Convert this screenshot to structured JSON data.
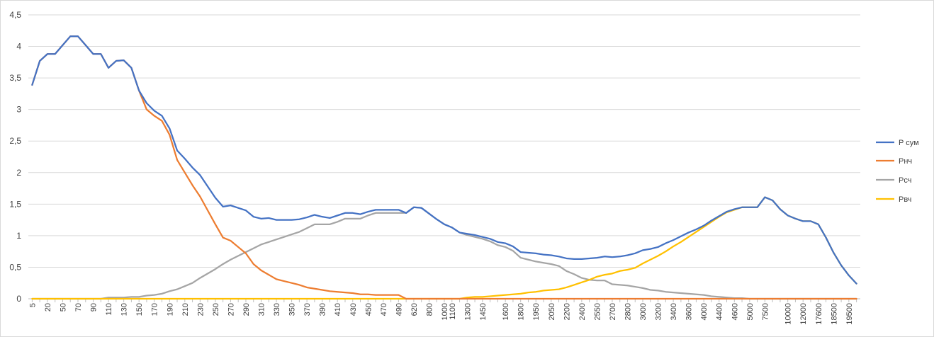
{
  "chart_data": {
    "type": "line",
    "title": "",
    "xlabel": "",
    "ylabel": "",
    "ylim": [
      0,
      4.5
    ],
    "yticks": [
      "0",
      "0,5",
      "1",
      "1,5",
      "2",
      "2,5",
      "3",
      "3,5",
      "4",
      "4,5"
    ],
    "grid": "horizontal",
    "legend_position": "right",
    "categories": [
      "5",
      "10",
      "20",
      "30",
      "50",
      "60",
      "70",
      "80",
      "90",
      "100",
      "110",
      "120",
      "130",
      "140",
      "150",
      "160",
      "170",
      "180",
      "190",
      "200",
      "210",
      "220",
      "230",
      "240",
      "250",
      "260",
      "270",
      "280",
      "290",
      "300",
      "310",
      "320",
      "330",
      "340",
      "350",
      "360",
      "370",
      "380",
      "390",
      "400",
      "410",
      "420",
      "430",
      "440",
      "450",
      "460",
      "470",
      "480",
      "490",
      "500",
      "620",
      "700",
      "800",
      "900",
      "1000",
      "1100",
      "1200",
      "1300",
      "1400",
      "1450",
      "1500",
      "1550",
      "1600",
      "1700",
      "1800",
      "1900",
      "1950",
      "2000",
      "2050",
      "2100",
      "2200",
      "2300",
      "2400",
      "2500",
      "2550",
      "2600",
      "2700",
      "2750",
      "2800",
      "2900",
      "3000",
      "3100",
      "3200",
      "3300",
      "3400",
      "3500",
      "3600",
      "3800",
      "4000",
      "4200",
      "4400",
      "4500",
      "4600",
      "4700",
      "5000",
      "6000",
      "7500",
      "8000",
      "9000",
      "10000",
      "11000",
      "12000",
      "15000",
      "17600",
      "18000",
      "18500",
      "19000",
      "19500",
      "20000"
    ],
    "tick_labels": [
      "5",
      "20",
      "50",
      "70",
      "90",
      "110",
      "130",
      "150",
      "170",
      "190",
      "210",
      "230",
      "250",
      "270",
      "290",
      "310",
      "330",
      "350",
      "370",
      "390",
      "410",
      "430",
      "450",
      "470",
      "490",
      "620",
      "800",
      "1000",
      "1100",
      "1300",
      "1450",
      "1600",
      "1800",
      "1950",
      "2050",
      "2200",
      "2400",
      "2550",
      "2700",
      "2800",
      "3000",
      "3200",
      "3400",
      "3600",
      "4000",
      "4400",
      "4600",
      "5000",
      "7500",
      "10000",
      "12000",
      "17600",
      "18500",
      "19500"
    ],
    "series": [
      {
        "name": "P сум",
        "color": "#4472C4",
        "values": [
          3.39,
          3.77,
          3.88,
          3.88,
          4.02,
          4.16,
          4.16,
          4.02,
          3.88,
          3.88,
          3.66,
          3.77,
          3.78,
          3.66,
          3.3,
          3.1,
          2.98,
          2.9,
          2.7,
          2.35,
          2.22,
          2.08,
          1.96,
          1.78,
          1.6,
          1.46,
          1.48,
          1.44,
          1.4,
          1.3,
          1.27,
          1.28,
          1.25,
          1.25,
          1.25,
          1.26,
          1.29,
          1.33,
          1.3,
          1.28,
          1.32,
          1.36,
          1.36,
          1.34,
          1.38,
          1.41,
          1.41,
          1.41,
          1.41,
          1.36,
          1.45,
          1.44,
          1.35,
          1.26,
          1.18,
          1.13,
          1.05,
          1.03,
          1.01,
          0.98,
          0.95,
          0.9,
          0.88,
          0.83,
          0.74,
          0.73,
          0.72,
          0.7,
          0.69,
          0.67,
          0.64,
          0.63,
          0.63,
          0.64,
          0.65,
          0.67,
          0.66,
          0.67,
          0.69,
          0.72,
          0.77,
          0.79,
          0.82,
          0.88,
          0.93,
          0.99,
          1.05,
          1.1,
          1.16,
          1.24,
          1.31,
          1.38,
          1.42,
          1.45,
          1.45,
          1.45,
          1.61,
          1.56,
          1.42,
          1.32,
          1.27,
          1.23,
          1.23,
          1.18,
          0.97,
          0.73,
          0.53,
          0.37,
          0.24
        ]
      },
      {
        "name": "Рнч",
        "color": "#ED7D31",
        "values": [
          3.39,
          3.77,
          3.88,
          3.88,
          4.02,
          4.16,
          4.16,
          4.02,
          3.88,
          3.88,
          3.66,
          3.77,
          3.78,
          3.66,
          3.3,
          3.0,
          2.9,
          2.82,
          2.6,
          2.2,
          2.0,
          1.8,
          1.62,
          1.4,
          1.18,
          0.97,
          0.92,
          0.82,
          0.72,
          0.55,
          0.45,
          0.38,
          0.31,
          0.28,
          0.25,
          0.22,
          0.18,
          0.16,
          0.14,
          0.12,
          0.11,
          0.1,
          0.09,
          0.07,
          0.07,
          0.06,
          0.06,
          0.06,
          0.06,
          0.0,
          0,
          0,
          0,
          0,
          0,
          0,
          0,
          0,
          0,
          0,
          0,
          0,
          0,
          0,
          0,
          0,
          0,
          0,
          0,
          0,
          0,
          0,
          0,
          0,
          0,
          0,
          0,
          0,
          0,
          0,
          0,
          0,
          0,
          0,
          0,
          0,
          0,
          0,
          0,
          0,
          0,
          0,
          0,
          0,
          0,
          0,
          0,
          0,
          0,
          0,
          0,
          0,
          0,
          0,
          0,
          0,
          0,
          0,
          0
        ]
      },
      {
        "name": "Рсч",
        "color": "#A5A5A5",
        "values": [
          0,
          0,
          0,
          0,
          0,
          0,
          0,
          0,
          0,
          0,
          0.02,
          0.02,
          0.02,
          0.03,
          0.03,
          0.05,
          0.06,
          0.08,
          0.12,
          0.15,
          0.2,
          0.25,
          0.33,
          0.4,
          0.47,
          0.55,
          0.62,
          0.68,
          0.74,
          0.8,
          0.86,
          0.9,
          0.94,
          0.98,
          1.02,
          1.06,
          1.12,
          1.18,
          1.18,
          1.18,
          1.22,
          1.27,
          1.27,
          1.27,
          1.32,
          1.36,
          1.36,
          1.36,
          1.36,
          1.36,
          1.45,
          1.44,
          1.35,
          1.26,
          1.18,
          1.13,
          1.05,
          1.01,
          0.98,
          0.95,
          0.91,
          0.85,
          0.82,
          0.76,
          0.65,
          0.62,
          0.59,
          0.57,
          0.55,
          0.52,
          0.44,
          0.39,
          0.33,
          0.3,
          0.29,
          0.29,
          0.23,
          0.22,
          0.21,
          0.19,
          0.17,
          0.14,
          0.13,
          0.11,
          0.1,
          0.09,
          0.08,
          0.07,
          0.06,
          0.04,
          0.03,
          0.02,
          0.01,
          0.01,
          0,
          0,
          0,
          0,
          0,
          0,
          0,
          0,
          0,
          0,
          0,
          0,
          0,
          0,
          0
        ]
      },
      {
        "name": "Рвч",
        "color": "#FFC000",
        "values": [
          0,
          0,
          0,
          0,
          0,
          0,
          0,
          0,
          0,
          0,
          0,
          0,
          0,
          0,
          0,
          0,
          0,
          0,
          0,
          0,
          0,
          0,
          0,
          0,
          0,
          0,
          0,
          0,
          0,
          0,
          0,
          0,
          0,
          0,
          0,
          0,
          0,
          0,
          0,
          0,
          0,
          0,
          0,
          0,
          0,
          0,
          0,
          0,
          0,
          0,
          0,
          0,
          0,
          0,
          0,
          0,
          0,
          0.02,
          0.03,
          0.03,
          0.04,
          0.05,
          0.06,
          0.07,
          0.08,
          0.1,
          0.11,
          0.13,
          0.14,
          0.15,
          0.18,
          0.22,
          0.26,
          0.3,
          0.35,
          0.38,
          0.4,
          0.44,
          0.46,
          0.49,
          0.56,
          0.62,
          0.68,
          0.75,
          0.83,
          0.9,
          0.98,
          1.06,
          1.14,
          1.22,
          1.3,
          1.37,
          1.41,
          1.45,
          1.45,
          1.45,
          1.61,
          1.56,
          1.42,
          1.32,
          1.27,
          1.23,
          1.23,
          1.18,
          0.97,
          0.73,
          0.53,
          0.37,
          0.24
        ]
      }
    ]
  }
}
